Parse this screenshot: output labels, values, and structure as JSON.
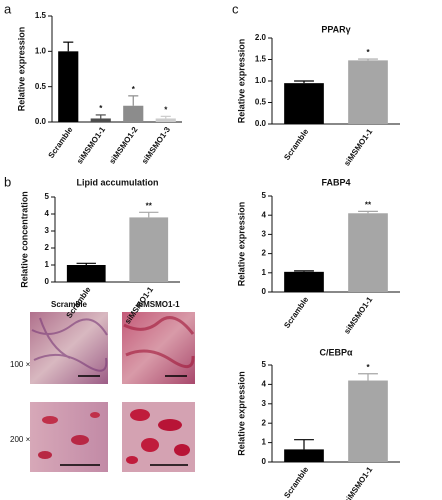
{
  "panel_labels": [
    "a",
    "b",
    "c"
  ],
  "micrographs": {
    "columns": [
      "Scramble",
      "siMSMO1-1"
    ],
    "rows": [
      "100 ×",
      "200 ×"
    ]
  },
  "chart_data": [
    {
      "type": "bar",
      "y_label": "Relative expression",
      "categories": [
        "Scramble",
        "siMSMO1-1",
        "siMSMO1-2",
        "siMSMO1-3"
      ],
      "values": [
        1.0,
        0.05,
        0.23,
        0.05
      ],
      "errors": [
        0.13,
        0.05,
        0.14,
        0.03
      ],
      "colors": [
        "#000000",
        "#4d4d4d",
        "#8c8c8c",
        "#cccccc"
      ],
      "significance": [
        null,
        "*",
        "*",
        "*"
      ],
      "ylim": [
        0,
        1.5
      ],
      "yticks": [
        {
          "value": 0,
          "label": "0.0"
        },
        {
          "value": 0.5,
          "label": "0.5"
        },
        {
          "value": 1,
          "label": "1.0"
        },
        {
          "value": 1.5,
          "label": "1.5"
        }
      ]
    },
    {
      "type": "bar",
      "title": "Lipid accumulation",
      "y_label": "Relative concentration",
      "categories": [
        "Scramble",
        "siMSMO1-1"
      ],
      "values": [
        1.0,
        3.8
      ],
      "errors": [
        0.1,
        0.3
      ],
      "colors": [
        "#000000",
        "#a6a6a6"
      ],
      "significance": [
        null,
        "**"
      ],
      "ylim": [
        0,
        5
      ],
      "yticks": [
        0,
        1,
        2,
        3,
        4,
        5
      ]
    },
    {
      "type": "bar",
      "title": "PPARγ",
      "y_label": "Relative expression",
      "categories": [
        "Scramble",
        "siMSMO1-1"
      ],
      "values": [
        0.95,
        1.48
      ],
      "errors": [
        0.05,
        0.03
      ],
      "colors": [
        "#000000",
        "#a6a6a6"
      ],
      "significance": [
        null,
        "*"
      ],
      "ylim": [
        0,
        2
      ],
      "yticks": [
        {
          "value": 0,
          "label": "0.0"
        },
        {
          "value": 0.5,
          "label": "0.5"
        },
        {
          "value": 1,
          "label": "1.0"
        },
        {
          "value": 1.5,
          "label": "1.5"
        },
        {
          "value": 2,
          "label": "2.0"
        }
      ]
    },
    {
      "type": "bar",
      "title": "FABP4",
      "y_label": "Relative expression",
      "categories": [
        "Scramble",
        "siMSMO1-1"
      ],
      "values": [
        1.05,
        4.1
      ],
      "errors": [
        0.05,
        0.1
      ],
      "colors": [
        "#000000",
        "#a6a6a6"
      ],
      "significance": [
        null,
        "**"
      ],
      "ylim": [
        0,
        5
      ],
      "yticks": [
        0,
        1,
        2,
        3,
        4,
        5
      ]
    },
    {
      "type": "bar",
      "title": "C/EBPα",
      "y_label": "Relative expression",
      "categories": [
        "Scramble",
        "siMSMO1-1"
      ],
      "values": [
        0.65,
        4.2
      ],
      "errors": [
        0.5,
        0.35
      ],
      "colors": [
        "#000000",
        "#a6a6a6"
      ],
      "significance": [
        null,
        "*"
      ],
      "ylim": [
        0,
        5
      ],
      "yticks": [
        0,
        1,
        2,
        3,
        4,
        5
      ]
    }
  ]
}
